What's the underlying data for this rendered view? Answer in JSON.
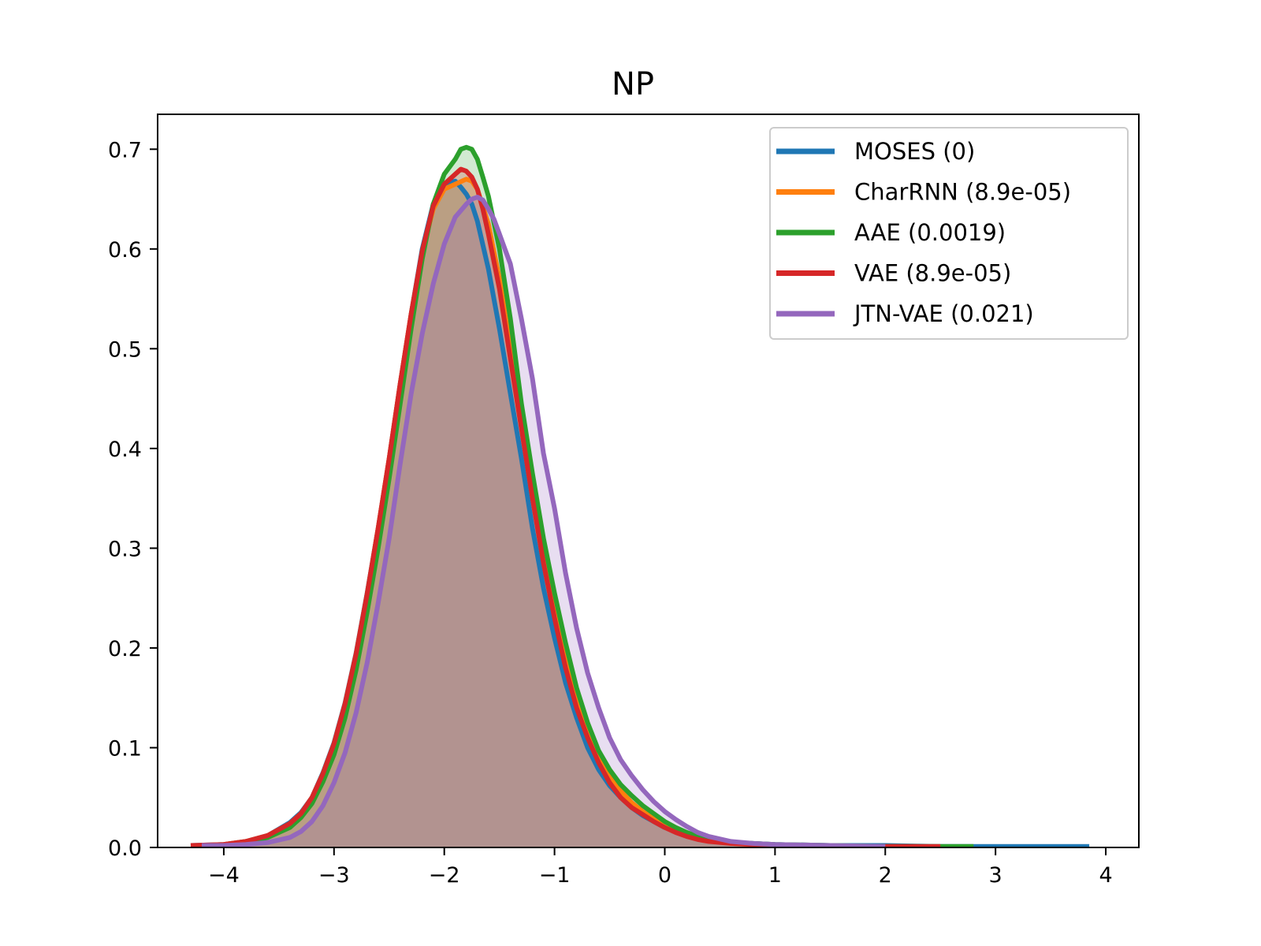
{
  "chart_data": {
    "type": "area",
    "title": "NP",
    "xlabel": "",
    "ylabel": "",
    "xlim": [
      -4.6,
      4.3
    ],
    "ylim": [
      0,
      0.735
    ],
    "xticks": [
      -4,
      -3,
      -2,
      -1,
      0,
      1,
      2,
      3,
      4
    ],
    "xtick_labels": [
      "−4",
      "−3",
      "−2",
      "−1",
      "0",
      "1",
      "2",
      "3",
      "4"
    ],
    "yticks": [
      0.0,
      0.1,
      0.2,
      0.3,
      0.4,
      0.5,
      0.6,
      0.7
    ],
    "ytick_labels": [
      "0.0",
      "0.1",
      "0.2",
      "0.3",
      "0.4",
      "0.5",
      "0.6",
      "0.7"
    ],
    "grid": false,
    "legend_position": "top-right",
    "series": [
      {
        "name": "MOSES (0)",
        "color": "#1f77b4",
        "x": [
          -4.3,
          -4.0,
          -3.8,
          -3.6,
          -3.4,
          -3.3,
          -3.2,
          -3.1,
          -3.0,
          -2.9,
          -2.8,
          -2.7,
          -2.6,
          -2.5,
          -2.4,
          -2.3,
          -2.2,
          -2.1,
          -2.0,
          -1.9,
          -1.85,
          -1.8,
          -1.75,
          -1.7,
          -1.6,
          -1.5,
          -1.4,
          -1.3,
          -1.2,
          -1.1,
          -1.0,
          -0.9,
          -0.8,
          -0.7,
          -0.6,
          -0.5,
          -0.4,
          -0.3,
          -0.2,
          -0.1,
          0.0,
          0.2,
          0.4,
          0.6,
          0.8,
          1.0,
          1.5,
          2.0,
          2.5,
          3.0,
          3.85
        ],
        "y": [
          0.002,
          0.003,
          0.006,
          0.012,
          0.025,
          0.035,
          0.05,
          0.075,
          0.105,
          0.145,
          0.195,
          0.255,
          0.32,
          0.39,
          0.465,
          0.535,
          0.6,
          0.645,
          0.665,
          0.668,
          0.662,
          0.655,
          0.645,
          0.628,
          0.58,
          0.52,
          0.455,
          0.39,
          0.32,
          0.26,
          0.21,
          0.165,
          0.13,
          0.1,
          0.078,
          0.062,
          0.05,
          0.04,
          0.032,
          0.026,
          0.02,
          0.013,
          0.008,
          0.005,
          0.004,
          0.003,
          0.002,
          0.002,
          0.001,
          0.001,
          0.001
        ]
      },
      {
        "name": "CharRNN (8.9e-05)",
        "color": "#ff7f0e",
        "x": [
          -4.2,
          -4.0,
          -3.8,
          -3.6,
          -3.4,
          -3.3,
          -3.2,
          -3.1,
          -3.0,
          -2.9,
          -2.8,
          -2.7,
          -2.6,
          -2.5,
          -2.4,
          -2.3,
          -2.2,
          -2.1,
          -2.0,
          -1.9,
          -1.8,
          -1.75,
          -1.7,
          -1.6,
          -1.5,
          -1.4,
          -1.3,
          -1.2,
          -1.1,
          -1.0,
          -0.9,
          -0.8,
          -0.7,
          -0.6,
          -0.5,
          -0.4,
          -0.3,
          -0.2,
          -0.1,
          0.0,
          0.2,
          0.4,
          0.6,
          0.8,
          1.0,
          1.5,
          2.0,
          2.3
        ],
        "y": [
          0.002,
          0.003,
          0.006,
          0.012,
          0.024,
          0.034,
          0.05,
          0.074,
          0.104,
          0.144,
          0.194,
          0.254,
          0.32,
          0.39,
          0.465,
          0.535,
          0.597,
          0.64,
          0.66,
          0.665,
          0.67,
          0.668,
          0.66,
          0.625,
          0.57,
          0.5,
          0.43,
          0.36,
          0.295,
          0.24,
          0.19,
          0.15,
          0.118,
          0.092,
          0.072,
          0.057,
          0.045,
          0.036,
          0.029,
          0.022,
          0.013,
          0.007,
          0.004,
          0.003,
          0.002,
          0.001,
          0.001,
          0.001
        ]
      },
      {
        "name": "AAE (0.0019)",
        "color": "#2ca02c",
        "x": [
          -4.1,
          -4.0,
          -3.8,
          -3.6,
          -3.4,
          -3.3,
          -3.2,
          -3.1,
          -3.0,
          -2.9,
          -2.8,
          -2.7,
          -2.6,
          -2.5,
          -2.4,
          -2.3,
          -2.2,
          -2.1,
          -2.0,
          -1.9,
          -1.85,
          -1.8,
          -1.75,
          -1.7,
          -1.65,
          -1.6,
          -1.5,
          -1.4,
          -1.3,
          -1.2,
          -1.1,
          -1.0,
          -0.9,
          -0.8,
          -0.7,
          -0.6,
          -0.5,
          -0.4,
          -0.3,
          -0.2,
          -0.1,
          0.0,
          0.1,
          0.2,
          0.3,
          0.4,
          0.6,
          0.8,
          1.0,
          1.5,
          2.0,
          2.5,
          2.8
        ],
        "y": [
          0.002,
          0.002,
          0.005,
          0.01,
          0.02,
          0.03,
          0.044,
          0.066,
          0.093,
          0.13,
          0.178,
          0.236,
          0.3,
          0.37,
          0.445,
          0.52,
          0.59,
          0.645,
          0.675,
          0.69,
          0.7,
          0.702,
          0.7,
          0.69,
          0.672,
          0.653,
          0.6,
          0.53,
          0.445,
          0.375,
          0.31,
          0.255,
          0.205,
          0.16,
          0.125,
          0.097,
          0.078,
          0.063,
          0.052,
          0.042,
          0.034,
          0.026,
          0.02,
          0.015,
          0.011,
          0.008,
          0.005,
          0.004,
          0.003,
          0.002,
          0.001,
          0.001,
          0.001
        ]
      },
      {
        "name": "VAE (8.9e-05)",
        "color": "#d62728",
        "x": [
          -4.3,
          -4.0,
          -3.8,
          -3.6,
          -3.4,
          -3.3,
          -3.2,
          -3.1,
          -3.0,
          -2.9,
          -2.8,
          -2.7,
          -2.6,
          -2.5,
          -2.4,
          -2.3,
          -2.2,
          -2.1,
          -2.0,
          -1.9,
          -1.85,
          -1.8,
          -1.75,
          -1.7,
          -1.65,
          -1.6,
          -1.5,
          -1.4,
          -1.3,
          -1.2,
          -1.1,
          -1.0,
          -0.9,
          -0.8,
          -0.7,
          -0.6,
          -0.5,
          -0.4,
          -0.3,
          -0.2,
          -0.1,
          0.0,
          0.1,
          0.2,
          0.3,
          0.4,
          0.6,
          0.8,
          1.0,
          1.5,
          2.0,
          2.5
        ],
        "y": [
          0.002,
          0.003,
          0.006,
          0.012,
          0.024,
          0.034,
          0.05,
          0.074,
          0.104,
          0.144,
          0.194,
          0.254,
          0.32,
          0.39,
          0.465,
          0.535,
          0.598,
          0.643,
          0.665,
          0.675,
          0.68,
          0.678,
          0.672,
          0.66,
          0.64,
          0.615,
          0.56,
          0.49,
          0.42,
          0.35,
          0.285,
          0.23,
          0.18,
          0.14,
          0.11,
          0.085,
          0.065,
          0.05,
          0.04,
          0.033,
          0.026,
          0.02,
          0.015,
          0.011,
          0.008,
          0.006,
          0.004,
          0.003,
          0.002,
          0.001,
          0.001,
          0.001
        ]
      },
      {
        "name": "JTN-VAE (0.021)",
        "color": "#9467bd",
        "x": [
          -4.2,
          -4.0,
          -3.8,
          -3.6,
          -3.4,
          -3.3,
          -3.2,
          -3.1,
          -3.0,
          -2.9,
          -2.8,
          -2.7,
          -2.6,
          -2.5,
          -2.4,
          -2.3,
          -2.2,
          -2.1,
          -2.0,
          -1.9,
          -1.8,
          -1.75,
          -1.7,
          -1.65,
          -1.6,
          -1.55,
          -1.5,
          -1.45,
          -1.4,
          -1.3,
          -1.2,
          -1.1,
          -1.0,
          -0.9,
          -0.8,
          -0.7,
          -0.6,
          -0.5,
          -0.4,
          -0.3,
          -0.2,
          -0.1,
          0.0,
          0.1,
          0.2,
          0.3,
          0.4,
          0.6,
          0.8,
          1.0,
          1.5,
          2.0
        ],
        "y": [
          0.002,
          0.002,
          0.003,
          0.005,
          0.01,
          0.016,
          0.026,
          0.042,
          0.065,
          0.095,
          0.135,
          0.185,
          0.245,
          0.31,
          0.385,
          0.455,
          0.515,
          0.565,
          0.605,
          0.632,
          0.645,
          0.65,
          0.652,
          0.649,
          0.64,
          0.63,
          0.615,
          0.6,
          0.585,
          0.53,
          0.47,
          0.395,
          0.34,
          0.275,
          0.22,
          0.175,
          0.14,
          0.11,
          0.088,
          0.072,
          0.058,
          0.046,
          0.036,
          0.028,
          0.021,
          0.015,
          0.011,
          0.006,
          0.004,
          0.003,
          0.002,
          0.001
        ]
      }
    ]
  }
}
